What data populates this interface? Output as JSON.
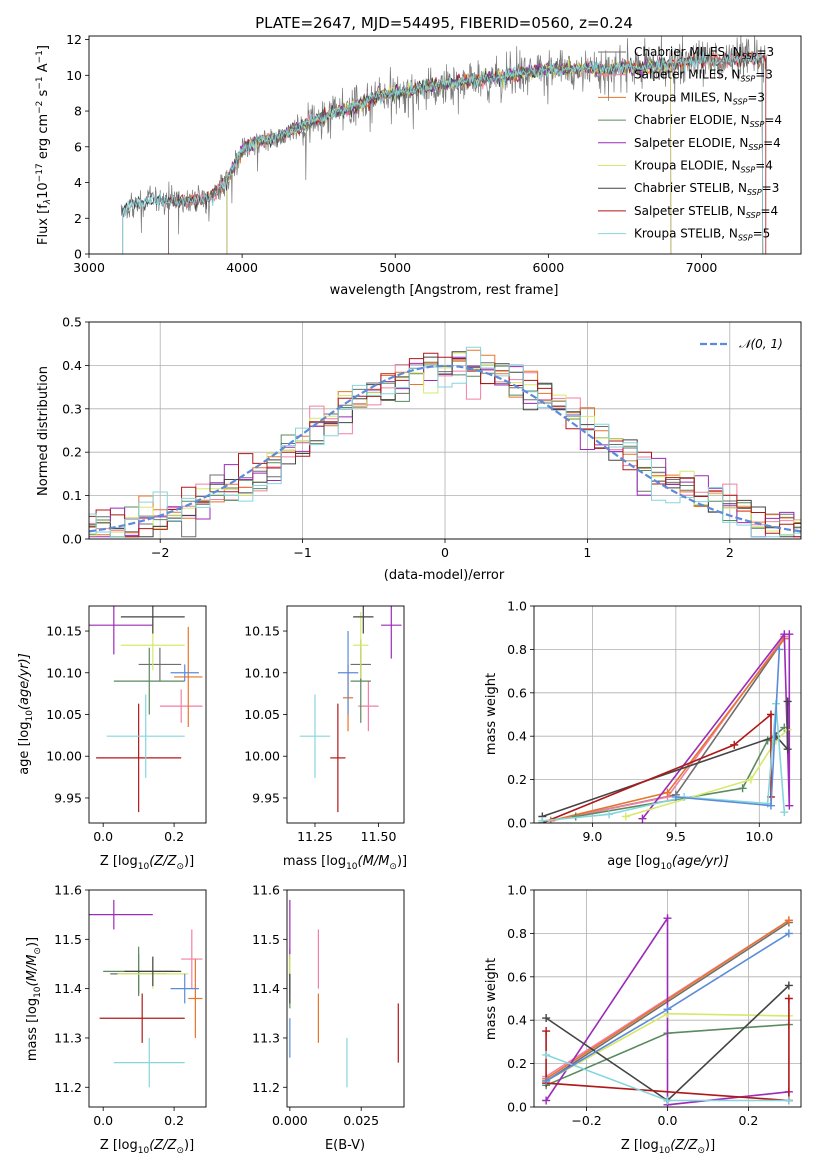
{
  "figure_title": "PLATE=2647, MJD=54495, FIBERID=0560, z=0.24",
  "colors": {
    "Chabrier MILES": "#6f6f6f",
    "Salpeter MILES": "#f27fa4",
    "Kroupa MILES": "#e8742a",
    "Chabrier ELODIE": "#5a8a5e",
    "Salpeter ELODIE": "#9b2bb8",
    "Kroupa ELODIE": "#d7e86a",
    "Chabrier STELIB": "#444444",
    "Salpeter STELIB": "#b01818",
    "Kroupa STELIB": "#85d6dc",
    "Normal": "#5b8bd9"
  },
  "chart_data": [
    {
      "type": "line",
      "panel": "spectrum",
      "xlabel": "wavelength [Angstrom, rest frame]",
      "ylabel": "Flux [f",
      "ylabel_sub": "λ",
      "ylabel_mid": "10",
      "ylabel_exp": "−17",
      "ylabel_end": " erg cm",
      "ylabel_exp2": "−2",
      "ylabel_end2": " s",
      "ylabel_exp3": "−1",
      "ylabel_end3": " A",
      "ylabel_exp4": "−1",
      "ylabel_close": "]",
      "xlim": [
        3000,
        7650
      ],
      "ylim": [
        0,
        12.2
      ],
      "xticks": [
        3000,
        4000,
        5000,
        6000,
        7000
      ],
      "yticks": [
        0,
        2,
        4,
        6,
        8,
        10,
        12
      ],
      "continuum": {
        "x": [
          3200,
          3300,
          3400,
          3500,
          3600,
          3700,
          3800,
          3900,
          4000,
          4100,
          4200,
          4300,
          4400,
          4500,
          4600,
          4700,
          4800,
          4900,
          5000,
          5100,
          5200,
          5300,
          5400,
          5500,
          5600,
          5700,
          5800,
          5900,
          6000,
          6100,
          6200,
          6300,
          6400,
          6500,
          6600,
          6700,
          6800,
          6900,
          7000,
          7100,
          7200,
          7300,
          7400
        ],
        "y": [
          2.4,
          2.8,
          3.0,
          3.0,
          2.9,
          3.0,
          3.2,
          4.1,
          5.8,
          6.3,
          6.4,
          6.8,
          7.2,
          7.6,
          7.9,
          8.1,
          8.5,
          8.9,
          9.0,
          9.1,
          9.3,
          9.5,
          9.6,
          9.7,
          9.8,
          9.9,
          10.1,
          10.2,
          10.4,
          10.3,
          10.4,
          10.4,
          10.3,
          10.5,
          10.4,
          10.6,
          10.6,
          10.8,
          10.9,
          10.8,
          10.9,
          10.9,
          10.9
        ]
      },
      "legend": [
        {
          "name": "Chabrier MILES",
          "sub": "SSP",
          "n": "=3"
        },
        {
          "name": "Salpeter MILES",
          "sub": "SSP",
          "n": "=3"
        },
        {
          "name": "Kroupa MILES",
          "sub": "SSP",
          "n": "=3"
        },
        {
          "name": "Chabrier ELODIE",
          "sub": "SSP",
          "n": "=4"
        },
        {
          "name": "Salpeter ELODIE",
          "sub": "SSP",
          "n": "=4"
        },
        {
          "name": "Kroupa ELODIE",
          "sub": "SSP",
          "n": "=4"
        },
        {
          "name": "Chabrier STELIB",
          "sub": "SSP",
          "n": "=3"
        },
        {
          "name": "Salpeter STELIB",
          "sub": "SSP",
          "n": "=4"
        },
        {
          "name": "Kroupa STELIB",
          "sub": "SSP",
          "n": "=5"
        }
      ]
    },
    {
      "type": "line",
      "panel": "residual-histogram",
      "xlabel": "(data-model)/error",
      "ylabel": "Normed distribution",
      "xlim": [
        -2.5,
        2.5
      ],
      "ylim": [
        0,
        0.5
      ],
      "xticks": [
        -2,
        -1,
        0,
        1,
        2
      ],
      "yticks": [
        0.0,
        0.1,
        0.2,
        0.3,
        0.4,
        0.5
      ],
      "grid": true,
      "bin_width": 0.1,
      "legend": "𝒩(0, 1)",
      "legend_position": "top-right"
    },
    {
      "type": "scatter",
      "panel": "age-vs-Z",
      "xlabel": "Z [log",
      "xlabel_sub": "10",
      "xlabel_rest": "(Z/Z",
      "xlabel_sun": "⊙",
      "xlabel_close": ")]",
      "ylabel": "age  [log",
      "ylabel_sub": "10",
      "ylabel_rest": "(age/yr)]",
      "xlim": [
        -0.04,
        0.29
      ],
      "ylim": [
        9.92,
        10.18
      ],
      "xticks": [
        0.0,
        0.2
      ],
      "yticks": [
        9.95,
        10.0,
        10.05,
        10.1,
        10.15
      ],
      "points": [
        {
          "series": "Chabrier MILES",
          "x": 0.16,
          "y": 10.11,
          "xerr": 0.06,
          "yerr": 0.02
        },
        {
          "series": "Salpeter MILES",
          "x": 0.22,
          "y": 10.06,
          "xerr": 0.06,
          "yerr": 0.02
        },
        {
          "series": "Kroupa MILES",
          "x": 0.24,
          "y": 10.095,
          "xerr": 0.04,
          "yerr": 0.06
        },
        {
          "series": "Chabrier ELODIE",
          "x": 0.13,
          "y": 10.09,
          "xerr": 0.1,
          "yerr": 0.04
        },
        {
          "series": "Salpeter ELODIE",
          "x": 0.03,
          "y": 10.157,
          "xerr": 0.11,
          "yerr": 0.035
        },
        {
          "series": "Kroupa ELODIE",
          "x": 0.14,
          "y": 10.133,
          "xerr": 0.09,
          "yerr": 0.03
        },
        {
          "series": "Chabrier STELIB",
          "x": 0.14,
          "y": 10.167,
          "xerr": 0.09,
          "yerr": 0.02
        },
        {
          "series": "Salpeter STELIB",
          "x": 0.1,
          "y": 9.998,
          "xerr": 0.12,
          "yerr": 0.065
        },
        {
          "series": "Kroupa STELIB",
          "x": 0.12,
          "y": 10.024,
          "xerr": 0.11,
          "yerr": 0.05
        },
        {
          "series": "Normal",
          "x": 0.23,
          "y": 10.1,
          "xerr": 0.04,
          "yerr": 0.01
        }
      ]
    },
    {
      "type": "scatter",
      "panel": "age-vs-mass",
      "xlabel": "mass [log",
      "xlabel_sub": "10",
      "xlabel_rest": "(M/M",
      "xlabel_sun": "⊙",
      "xlabel_close": ")]",
      "xlim": [
        11.14,
        11.6
      ],
      "ylim": [
        9.92,
        10.18
      ],
      "xticks": [
        11.25,
        11.5
      ],
      "yticks": [
        9.95,
        10.0,
        10.05,
        10.1,
        10.15
      ],
      "points": [
        {
          "series": "Chabrier MILES",
          "x": 11.43,
          "y": 10.11,
          "xerr": 0.04,
          "yerr": 0.02
        },
        {
          "series": "Salpeter MILES",
          "x": 11.46,
          "y": 10.06,
          "xerr": 0.04,
          "yerr": 0.03
        },
        {
          "series": "Kroupa MILES",
          "x": 11.38,
          "y": 10.07,
          "xerr": 0.02,
          "yerr": 0.04
        },
        {
          "series": "Chabrier ELODIE",
          "x": 11.43,
          "y": 10.09,
          "xerr": 0.04,
          "yerr": 0.05
        },
        {
          "series": "Salpeter ELODIE",
          "x": 11.55,
          "y": 10.157,
          "xerr": 0.04,
          "yerr": 0.04
        },
        {
          "series": "Kroupa ELODIE",
          "x": 11.43,
          "y": 10.133,
          "xerr": 0.03,
          "yerr": 0.04
        },
        {
          "series": "Chabrier STELIB",
          "x": 11.44,
          "y": 10.167,
          "xerr": 0.04,
          "yerr": 0.02
        },
        {
          "series": "Salpeter STELIB",
          "x": 11.34,
          "y": 9.998,
          "xerr": 0.03,
          "yerr": 0.065
        },
        {
          "series": "Kroupa STELIB",
          "x": 11.25,
          "y": 10.024,
          "xerr": 0.06,
          "yerr": 0.05
        },
        {
          "series": "Normal",
          "x": 11.38,
          "y": 10.1,
          "xerr": 0.04,
          "yerr": 0.05
        }
      ]
    },
    {
      "type": "line",
      "panel": "mass-weight-vs-age",
      "xlabel": "age  [log",
      "xlabel_sub": "10",
      "xlabel_rest": "(age/yr)]",
      "ylabel": "mass weight",
      "xlim": [
        8.65,
        10.25
      ],
      "ylim": [
        0,
        1.0
      ],
      "xticks": [
        9.0,
        9.5,
        10.0
      ],
      "yticks": [
        0.0,
        0.2,
        0.4,
        0.6,
        0.8,
        1.0
      ],
      "grid": true,
      "series": [
        {
          "name": "Chabrier MILES",
          "x": [
            8.75,
            9.5,
            10.15
          ],
          "y": [
            0.01,
            0.13,
            0.85
          ]
        },
        {
          "name": "Salpeter MILES",
          "x": [
            8.75,
            9.45,
            10.15
          ],
          "y": [
            0.01,
            0.12,
            0.86
          ]
        },
        {
          "name": "Kroupa MILES",
          "x": [
            8.75,
            9.45,
            10.15
          ],
          "y": [
            0.01,
            0.14,
            0.85
          ]
        },
        {
          "name": "Chabrier ELODIE",
          "x": [
            8.9,
            9.9,
            10.05,
            10.15
          ],
          "y": [
            0.03,
            0.16,
            0.38,
            0.44
          ]
        },
        {
          "name": "Salpeter ELODIE",
          "x": [
            9.3,
            10.15,
            10.18,
            10.18
          ],
          "y": [
            0.02,
            0.87,
            0.08,
            0.87
          ]
        },
        {
          "name": "Kroupa ELODIE",
          "x": [
            9.2,
            9.95,
            10.1,
            10.17
          ],
          "y": [
            0.03,
            0.2,
            0.38,
            0.43
          ]
        },
        {
          "name": "Chabrier STELIB",
          "x": [
            8.7,
            10.1,
            10.17,
            10.17
          ],
          "y": [
            0.03,
            0.4,
            0.34,
            0.56
          ]
        },
        {
          "name": "Salpeter STELIB",
          "x": [
            8.7,
            9.85,
            10.07,
            10.07
          ],
          "y": [
            0.0,
            0.36,
            0.5,
            0.12
          ]
        },
        {
          "name": "Kroupa STELIB",
          "x": [
            8.7,
            9.1,
            9.55,
            10.05,
            10.1,
            10.15
          ],
          "y": [
            0.01,
            0.04,
            0.12,
            0.09,
            0.55,
            0.05
          ]
        },
        {
          "name": "Normal",
          "x": [
            9.5,
            10.07,
            10.12
          ],
          "y": [
            0.12,
            0.08,
            0.8
          ]
        }
      ]
    },
    {
      "type": "scatter",
      "panel": "mass-vs-Z",
      "xlabel": "Z [log",
      "xlabel_sub": "10",
      "xlabel_rest": "(Z/Z",
      "xlabel_sun": "⊙",
      "xlabel_close": ")]",
      "ylabel": "mass [log",
      "ylabel_sub": "10",
      "ylabel_rest": "(M/M",
      "ylabel_sun": "⊙",
      "ylabel_close": ")]",
      "xlim": [
        -0.04,
        0.29
      ],
      "ylim": [
        11.16,
        11.6
      ],
      "xticks": [
        0.0,
        0.2
      ],
      "yticks": [
        11.2,
        11.3,
        11.4,
        11.5,
        11.6
      ],
      "points": [
        {
          "series": "Chabrier MILES",
          "x": 0.1,
          "y": 11.43,
          "xerr": 0.08,
          "yerr": 0.04
        },
        {
          "series": "Salpeter MILES",
          "x": 0.25,
          "y": 11.46,
          "xerr": 0.03,
          "yerr": 0.06
        },
        {
          "series": "Kroupa MILES",
          "x": 0.26,
          "y": 11.38,
          "xerr": 0.02,
          "yerr": 0.08
        },
        {
          "series": "Chabrier ELODIE",
          "x": 0.1,
          "y": 11.435,
          "xerr": 0.1,
          "yerr": 0.05
        },
        {
          "series": "Salpeter ELODIE",
          "x": 0.03,
          "y": 11.55,
          "xerr": 0.11,
          "yerr": 0.03
        },
        {
          "series": "Kroupa ELODIE",
          "x": 0.14,
          "y": 11.43,
          "xerr": 0.1,
          "yerr": 0.03
        },
        {
          "series": "Chabrier STELIB",
          "x": 0.14,
          "y": 11.435,
          "xerr": 0.08,
          "yerr": 0.03
        },
        {
          "series": "Salpeter STELIB",
          "x": 0.11,
          "y": 11.34,
          "xerr": 0.12,
          "yerr": 0.05
        },
        {
          "series": "Kroupa STELIB",
          "x": 0.13,
          "y": 11.25,
          "xerr": 0.1,
          "yerr": 0.05
        },
        {
          "series": "Normal",
          "x": 0.23,
          "y": 11.4,
          "xerr": 0.04,
          "yerr": 0.03
        }
      ]
    },
    {
      "type": "scatter",
      "panel": "mass-vs-EBV",
      "xlabel": "E(B-V)",
      "xlim": [
        -0.001,
        0.04
      ],
      "ylim": [
        11.16,
        11.6
      ],
      "xticks": [
        0.0,
        0.025
      ],
      "xtick_labels": [
        "0.000",
        "0.025"
      ],
      "yticks": [
        11.2,
        11.3,
        11.4,
        11.5,
        11.6
      ],
      "points": [
        {
          "series": "Chabrier MILES",
          "x": 0.0,
          "y": 11.43,
          "yerr": 0.04
        },
        {
          "series": "Salpeter MILES",
          "x": 0.01,
          "y": 11.46,
          "yerr": 0.06
        },
        {
          "series": "Kroupa MILES",
          "x": 0.01,
          "y": 11.34,
          "yerr": 0.05
        },
        {
          "series": "Chabrier ELODIE",
          "x": 0.0,
          "y": 11.42,
          "yerr": 0.06
        },
        {
          "series": "Salpeter ELODIE",
          "x": 0.0,
          "y": 11.52,
          "yerr": 0.06
        },
        {
          "series": "Kroupa ELODIE",
          "x": 0.0,
          "y": 11.45,
          "yerr": 0.02
        },
        {
          "series": "Chabrier STELIB",
          "x": 0.0,
          "y": 11.4,
          "yerr": 0.03
        },
        {
          "series": "Salpeter STELIB",
          "x": 0.038,
          "y": 11.31,
          "yerr": 0.06
        },
        {
          "series": "Kroupa STELIB",
          "x": 0.02,
          "y": 11.25,
          "yerr": 0.05
        },
        {
          "series": "Normal",
          "x": 0.0,
          "y": 11.3,
          "yerr": 0.04
        }
      ]
    },
    {
      "type": "line",
      "panel": "mass-weight-vs-Z",
      "xlabel": "Z [log",
      "xlabel_sub": "10",
      "xlabel_rest": "(Z/Z",
      "xlabel_sun": "⊙",
      "xlabel_close": ")]",
      "ylabel": "mass weight",
      "xlim": [
        -0.33,
        0.33
      ],
      "ylim": [
        0,
        1.0
      ],
      "xticks": [
        -0.2,
        0.0,
        0.2
      ],
      "xtick_labels": [
        "−0.2",
        "0.0",
        "0.2"
      ],
      "yticks": [
        0.0,
        0.2,
        0.4,
        0.6,
        0.8,
        1.0
      ],
      "grid": true,
      "series": [
        {
          "name": "Chabrier MILES",
          "x": [
            -0.3,
            0.3
          ],
          "y": [
            0.12,
            0.85
          ]
        },
        {
          "name": "Salpeter MILES",
          "x": [
            -0.3,
            0.3
          ],
          "y": [
            0.14,
            0.86
          ]
        },
        {
          "name": "Kroupa MILES",
          "x": [
            -0.3,
            0.3
          ],
          "y": [
            0.13,
            0.86
          ]
        },
        {
          "name": "Chabrier ELODIE",
          "x": [
            -0.3,
            0.0,
            0.3
          ],
          "y": [
            0.1,
            0.34,
            0.38
          ]
        },
        {
          "name": "Salpeter ELODIE",
          "x": [
            -0.3,
            0.0,
            0.0,
            0.3
          ],
          "y": [
            0.03,
            0.87,
            0.01,
            0.07
          ]
        },
        {
          "name": "Kroupa ELODIE",
          "x": [
            -0.3,
            0.0,
            0.3
          ],
          "y": [
            0.12,
            0.43,
            0.42
          ]
        },
        {
          "name": "Chabrier STELIB",
          "x": [
            -0.3,
            0.0,
            0.3
          ],
          "y": [
            0.41,
            0.03,
            0.56
          ]
        },
        {
          "name": "Salpeter STELIB",
          "x": [
            -0.3,
            -0.3,
            0.3,
            0.3
          ],
          "y": [
            0.35,
            0.11,
            0.03,
            0.5
          ]
        },
        {
          "name": "Kroupa STELIB",
          "x": [
            -0.3,
            0.0,
            0.3
          ],
          "y": [
            0.24,
            0.03,
            0.03
          ]
        },
        {
          "name": "Normal",
          "x": [
            -0.3,
            0.0,
            0.3
          ],
          "y": [
            0.12,
            0.45,
            0.8
          ]
        }
      ]
    }
  ]
}
